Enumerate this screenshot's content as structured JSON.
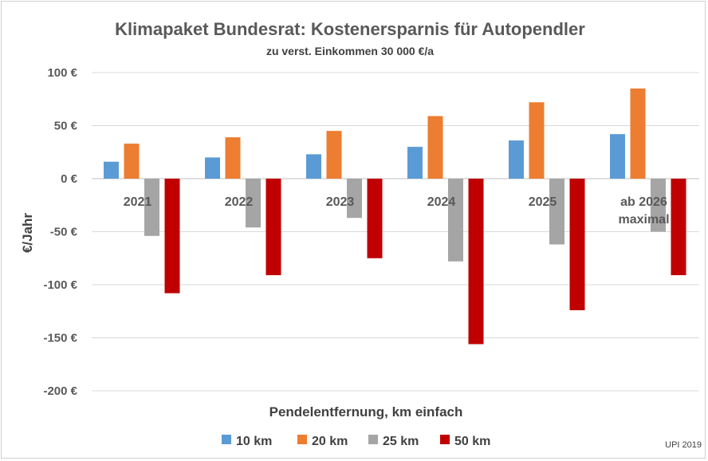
{
  "chart_data": {
    "type": "bar",
    "title": "Klimapaket Bundesrat: Kostenersparnis für Autopendler",
    "subtitle": "zu verst. Einkommen 30 000 €/a",
    "xlabel": "Pendelentfernung, km einfach",
    "ylabel": "€/Jahr",
    "ylim": [
      -200,
      100
    ],
    "yticks": [
      100,
      50,
      0,
      -50,
      -100,
      -150,
      -200
    ],
    "ytick_labels": [
      "100 €",
      "50 €",
      "0 €",
      "-50 €",
      "-100 €",
      "-150 €",
      "-200 €"
    ],
    "categories": [
      [
        "2021"
      ],
      [
        "2022"
      ],
      [
        "2023"
      ],
      [
        "2024"
      ],
      [
        "2025"
      ],
      [
        "ab 2026",
        "maximal"
      ]
    ],
    "series": [
      {
        "name": "10 km",
        "color": "#5b9bd5",
        "values": [
          16,
          20,
          23,
          30,
          36,
          42
        ]
      },
      {
        "name": "20 km",
        "color": "#ed7d31",
        "values": [
          33,
          39,
          45,
          59,
          72,
          85
        ]
      },
      {
        "name": "25 km",
        "color": "#a5a5a5",
        "values": [
          -54,
          -46,
          -37,
          -78,
          -62,
          -50
        ]
      },
      {
        "name": "50 km",
        "color": "#c00000",
        "values": [
          -108,
          -91,
          -75,
          -156,
          -124,
          -91
        ]
      }
    ],
    "grid": true,
    "legend_position": "bottom",
    "credit": "UPI 2019"
  }
}
